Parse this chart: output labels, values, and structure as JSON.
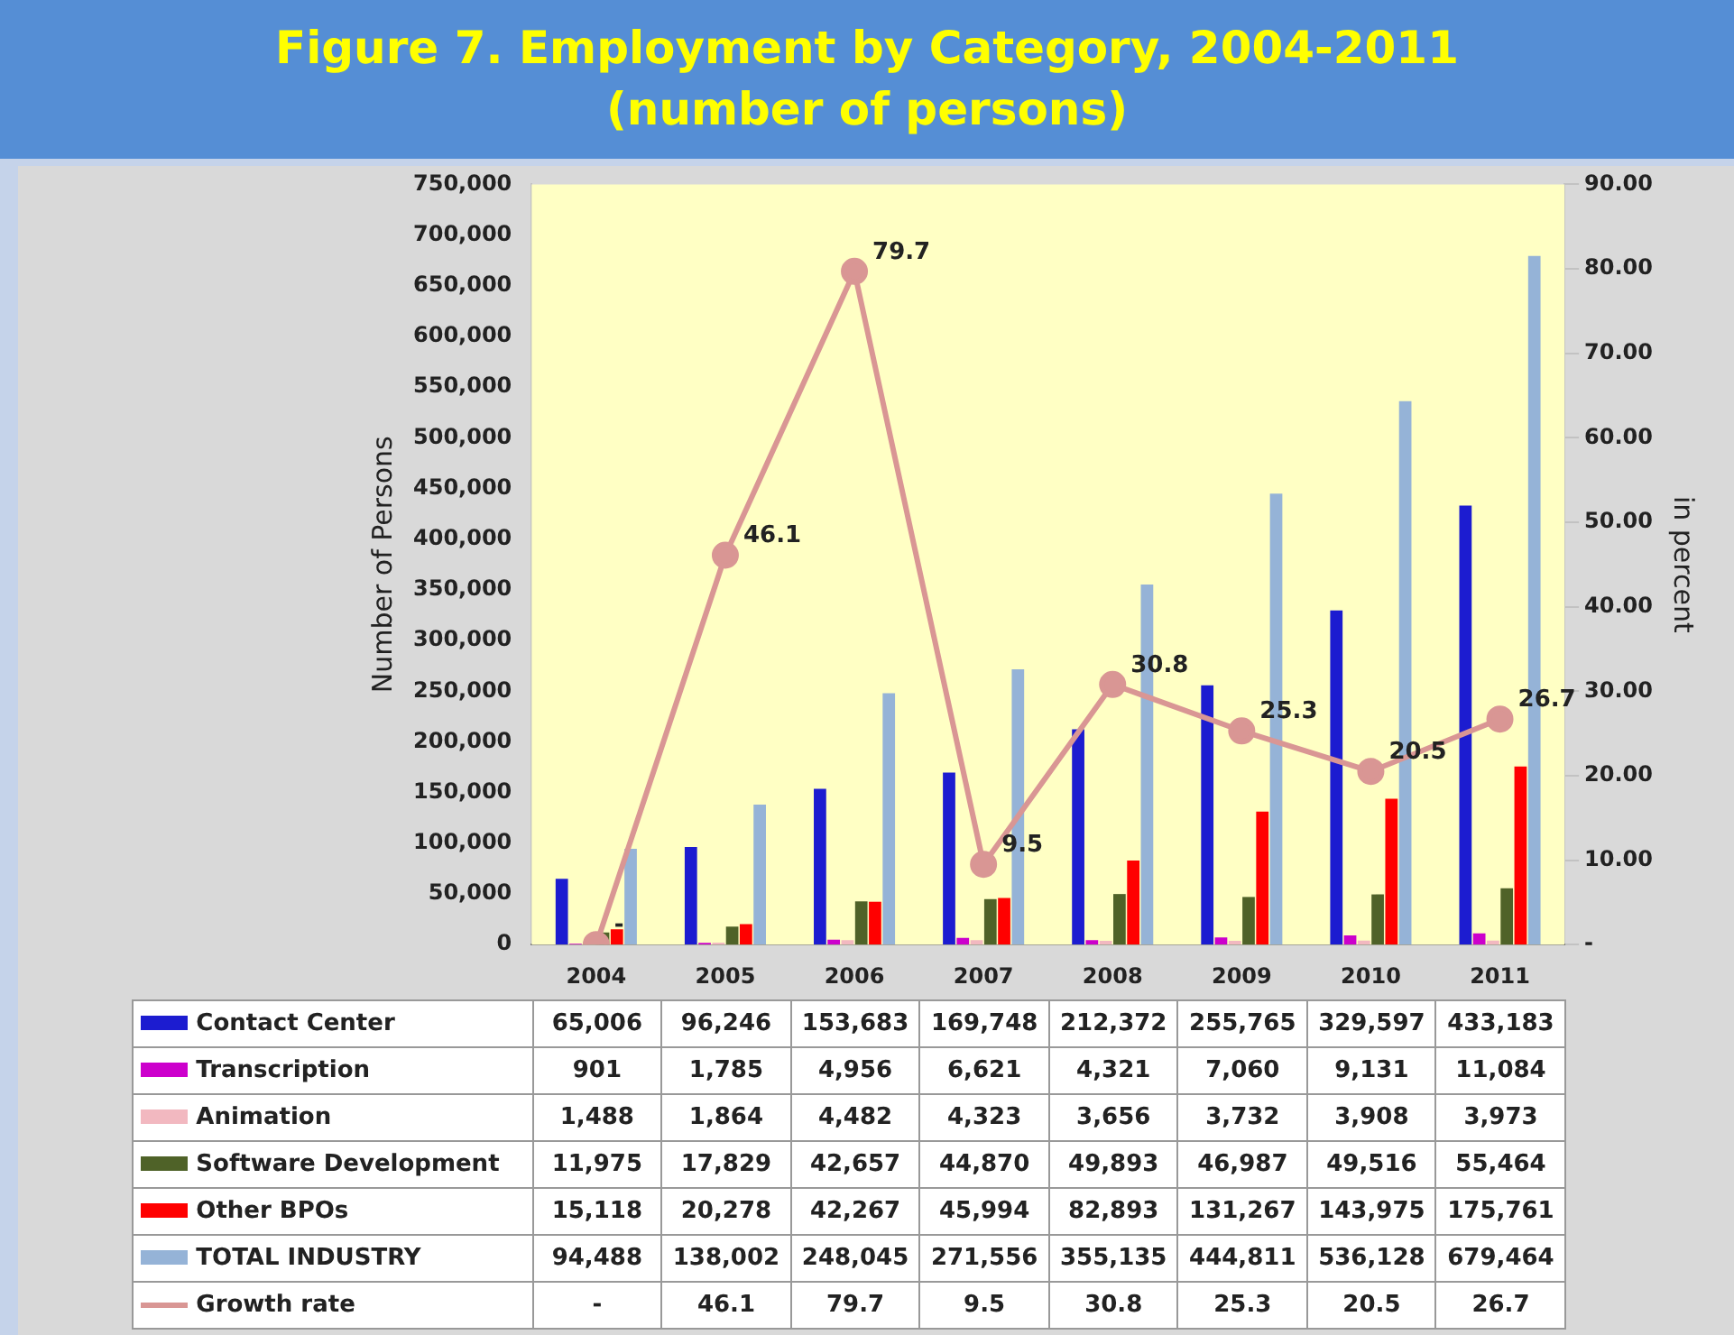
{
  "chart_data": {
    "type": "bar",
    "title": "Figure 7. Employment by Category, 2004-2011",
    "subtitle": "(number of persons)",
    "ylabel": "Number of Persons",
    "y2label": "in percent",
    "categories": [
      "2004",
      "2005",
      "2006",
      "2007",
      "2008",
      "2009",
      "2010",
      "2011"
    ],
    "series": [
      {
        "name": "Contact Center",
        "color": "#1c1cd0",
        "values": [
          65006,
          96246,
          153683,
          169748,
          212372,
          255765,
          329597,
          433183
        ],
        "value_labels": [
          "65,006",
          "96,246",
          "153,683",
          "169,748",
          "212,372",
          "255,765",
          "329,597",
          "433,183"
        ]
      },
      {
        "name": "Transcription",
        "color": "#cc00cc",
        "values": [
          901,
          1785,
          4956,
          6621,
          4321,
          7060,
          9131,
          11084
        ],
        "value_labels": [
          "901",
          "1,785",
          "4,956",
          "6,621",
          "4,321",
          "7,060",
          "9,131",
          "11,084"
        ]
      },
      {
        "name": "Animation",
        "color": "#f2b8c0",
        "values": [
          1488,
          1864,
          4482,
          4323,
          3656,
          3732,
          3908,
          3973
        ],
        "value_labels": [
          "1,488",
          "1,864",
          "4,482",
          "4,323",
          "3,656",
          "3,732",
          "3,908",
          "3,973"
        ]
      },
      {
        "name": "Software Development",
        "color": "#4f6228",
        "values": [
          11975,
          17829,
          42657,
          44870,
          49893,
          46987,
          49516,
          55464
        ],
        "value_labels": [
          "11,975",
          "17,829",
          "42,657",
          "44,870",
          "49,893",
          "46,987",
          "49,516",
          "55,464"
        ]
      },
      {
        "name": "Other BPOs",
        "color": "#ff0000",
        "values": [
          15118,
          20278,
          42267,
          45994,
          82893,
          131267,
          143975,
          175761
        ],
        "value_labels": [
          "15,118",
          "20,278",
          "42,267",
          "45,994",
          "82,893",
          "131,267",
          "143,975",
          "175,761"
        ]
      },
      {
        "name": "TOTAL INDUSTRY",
        "color": "#95b3d7",
        "values": [
          94488,
          138002,
          248045,
          271556,
          355135,
          444811,
          536128,
          679464
        ],
        "value_labels": [
          "94,488",
          "138,002",
          "248,045",
          "271,556",
          "355,135",
          "444,811",
          "536,128",
          "679,464"
        ]
      },
      {
        "name": "Growth rate",
        "type": "line",
        "axis": "y2",
        "color": "#d99694",
        "marker": "circle",
        "values": [
          0,
          46.1,
          79.7,
          9.5,
          30.8,
          25.3,
          20.5,
          26.7
        ],
        "value_labels": [
          "-",
          "46.1",
          "79.7",
          "9.5",
          "30.8",
          "25.3",
          "20.5",
          "26.7"
        ]
      }
    ],
    "ylim": [
      0,
      750000
    ],
    "yticks": [
      0,
      {
        "value": 50000,
        "label": "50,000"
      },
      {
        "value": 100000,
        "label": "100,000"
      },
      {
        "value": 150000,
        "label": "150,000"
      },
      {
        "value": 200000,
        "label": "200,000"
      },
      {
        "value": 250000,
        "label": "250,000"
      },
      {
        "value": 300000,
        "label": "300,000"
      },
      {
        "value": 350000,
        "label": "350,000"
      },
      {
        "value": 400000,
        "label": "400,000"
      },
      {
        "value": 450000,
        "label": "450,000"
      },
      {
        "value": 500000,
        "label": "500,000"
      },
      {
        "value": 550000,
        "label": "550,000"
      },
      {
        "value": 600000,
        "label": "600,000"
      },
      {
        "value": 650000,
        "label": "650,000"
      },
      {
        "value": 700000,
        "label": "700,000"
      },
      {
        "value": 750000,
        "label": "750,000"
      }
    ],
    "y2lim": [
      0,
      90
    ],
    "y2ticks": [
      {
        "value": 0,
        "label": "-"
      },
      {
        "value": 10,
        "label": "10.00"
      },
      {
        "value": 20,
        "label": "20.00"
      },
      {
        "value": 30,
        "label": "30.00"
      },
      {
        "value": 40,
        "label": "40.00"
      },
      {
        "value": 50,
        "label": "50.00"
      },
      {
        "value": 60,
        "label": "60.00"
      },
      {
        "value": 70,
        "label": "70.00"
      },
      {
        "value": 80,
        "label": "80.00"
      },
      {
        "value": 90,
        "label": "90.00"
      }
    ],
    "grid": false,
    "legend": "bottom"
  }
}
